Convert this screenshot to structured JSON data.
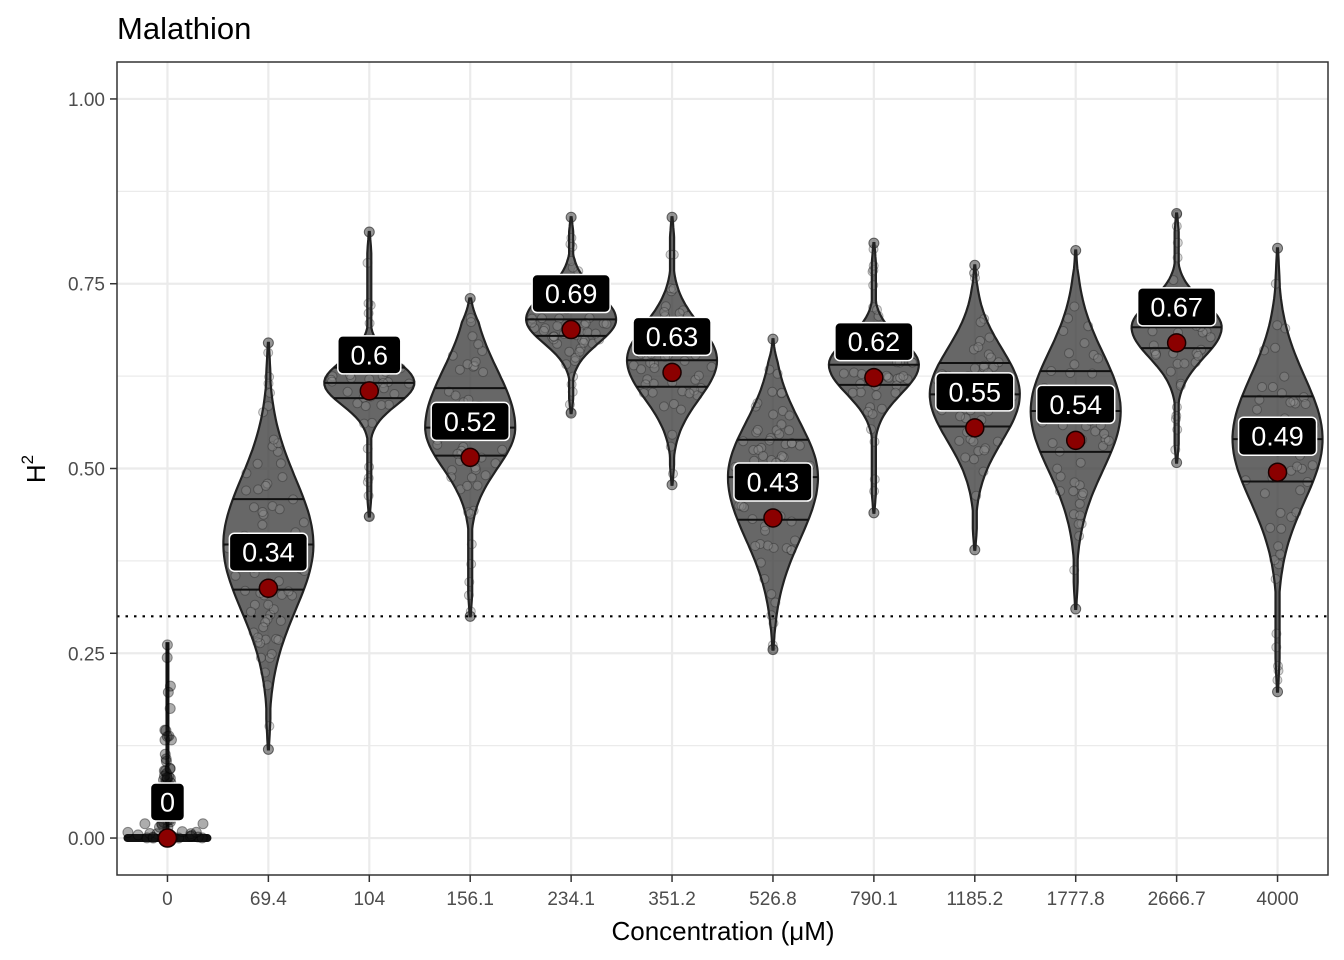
{
  "chart_data": {
    "type": "violin",
    "title": "Malathion",
    "xlabel": "Concentration (μM)",
    "ylabel_base": "H",
    "ylabel_sup": "2",
    "categories": [
      "0",
      "69.4",
      "104",
      "156.1",
      "234.1",
      "351.2",
      "526.8",
      "790.1",
      "1185.2",
      "1777.8",
      "2666.7",
      "4000"
    ],
    "values": [
      0,
      0.34,
      0.6,
      0.52,
      0.69,
      0.63,
      0.43,
      0.62,
      0.55,
      0.54,
      0.67,
      0.49
    ],
    "point_estimates": [
      0.0,
      0.338,
      0.605,
      0.515,
      0.688,
      0.63,
      0.433,
      0.623,
      0.555,
      0.538,
      0.67,
      0.495
    ],
    "distribution_min": [
      0.0,
      0.12,
      0.435,
      0.3,
      0.575,
      0.478,
      0.255,
      0.44,
      0.39,
      0.31,
      0.508,
      0.198
    ],
    "distribution_max": [
      0.265,
      0.67,
      0.82,
      0.73,
      0.84,
      0.84,
      0.675,
      0.805,
      0.775,
      0.795,
      0.845,
      0.798
    ],
    "quartiles": [
      [
        0.0,
        0.0,
        0.0
      ],
      [
        0.3362,
        0.3972,
        0.4586
      ],
      [
        0.5953,
        0.6159,
        0.6365
      ],
      [
        0.5175,
        0.5553,
        0.6088
      ],
      [
        0.6795,
        0.7017,
        0.7262
      ],
      [
        0.6106,
        0.6465,
        0.6798
      ],
      [
        0.4307,
        0.4884,
        0.5389
      ],
      [
        0.6132,
        0.6404,
        0.664
      ],
      [
        0.5568,
        0.6003,
        0.6427
      ],
      [
        0.5225,
        0.5778,
        0.6318
      ],
      [
        0.6629,
        0.6911,
        0.7147
      ],
      [
        0.4824,
        0.5398,
        0.5976
      ]
    ],
    "ylim": [
      -0.05,
      1.05
    ],
    "yticks": [
      0.0,
      0.25,
      0.5,
      0.75,
      1.0
    ],
    "ytick_labels": [
      "0.00",
      "0.25",
      "0.50",
      "0.75",
      "1.00"
    ],
    "threshold_line": 0.3,
    "grid": true,
    "colors": {
      "violin_fill": "#3a3a3a",
      "violin_outline": "#222222",
      "point": "#8b0000",
      "label_bg": "#000000",
      "label_text": "#ffffff",
      "grid": "#ebebeb",
      "panel_border": "#333333",
      "threshold": "#000000"
    }
  }
}
